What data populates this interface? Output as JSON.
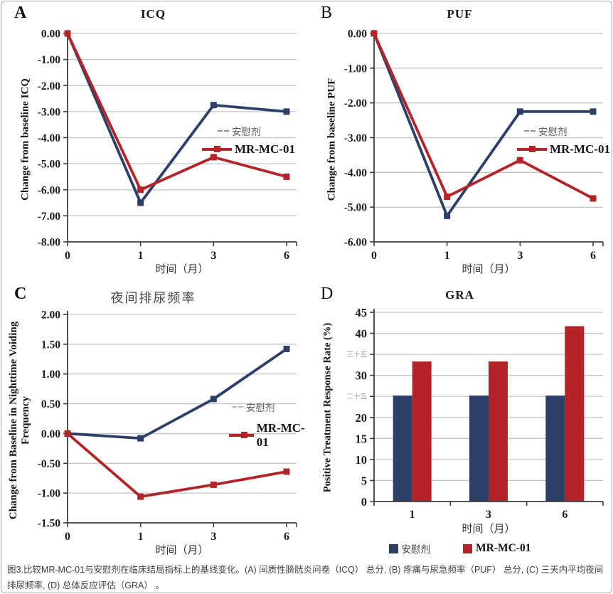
{
  "caption": "图3.比较MR-MC-01与安慰剂在临床结局指标上的基线变化。(A) 间质性膀胱炎问卷（ICQ） 总分, (B) 疼痛与尿急频率（PUF） 总分, (C) 三天内平均夜间排尿频率, (D) 总体反应评估（GRA） 。",
  "colors": {
    "placebo_navy": "#2d3f68",
    "treatment_red": "#b42328",
    "gridline": "#c4c4c4",
    "axis": "#3f3f3f",
    "muted_tick": "#9a9a9a"
  },
  "chart_data": [
    {
      "type": "line",
      "panel": "A",
      "title": "ICQ",
      "ylabel": "Change from baseline ICQ",
      "xlabel": "时间（月）",
      "categories": [
        "0",
        "1",
        "3",
        "6"
      ],
      "ylim": [
        -8,
        0
      ],
      "grid": true,
      "legend_position": "inside-right",
      "yticks": [
        {
          "label": "0.00",
          "value": 0
        },
        {
          "label": "-1.00",
          "value": -1
        },
        {
          "label": "-2.00",
          "value": -2
        },
        {
          "label": "-3.00",
          "value": -3
        },
        {
          "label": "-4.00",
          "value": -4
        },
        {
          "label": "-5.00",
          "value": -5
        },
        {
          "label": "-6.00",
          "value": -6
        },
        {
          "label": "-7.00",
          "value": -7
        },
        {
          "label": "-8.00",
          "value": -8
        }
      ],
      "series": [
        {
          "name": "安慰剂",
          "color": "#2d3f68",
          "values": [
            0,
            -6.5,
            -2.75,
            -3.0
          ]
        },
        {
          "name": "MR-MC-01",
          "color": "#b42328",
          "values": [
            0,
            -6.0,
            -4.75,
            -5.5
          ]
        }
      ]
    },
    {
      "type": "line",
      "panel": "B",
      "title": "PUF",
      "ylabel": "Change from baseline PUF",
      "xlabel": "时间（月）",
      "categories": [
        "0",
        "1",
        "3",
        "6"
      ],
      "ylim": [
        -6,
        0
      ],
      "grid": true,
      "legend_position": "inside-right",
      "yticks": [
        {
          "label": "0.00",
          "value": 0
        },
        {
          "label": "-1.00",
          "value": -1
        },
        {
          "label": "-2.00",
          "value": -2
        },
        {
          "label": "-3.00",
          "value": -3
        },
        {
          "label": "-4.00",
          "value": -4
        },
        {
          "label": "-5.00",
          "value": -5
        },
        {
          "label": "-6.00",
          "value": -6
        }
      ],
      "series": [
        {
          "name": "安慰剂",
          "color": "#2d3f68",
          "values": [
            0,
            -5.25,
            -2.25,
            -2.25
          ]
        },
        {
          "name": "MR-MC-01",
          "color": "#b42328",
          "values": [
            0,
            -4.7,
            -3.65,
            -4.75
          ]
        }
      ]
    },
    {
      "type": "line",
      "panel": "C",
      "title": "夜间排尿频率",
      "ylabel": "Change from Baseline in Nighttime Voiding Frequency",
      "xlabel": "时间（月）",
      "categories": [
        "0",
        "1",
        "3",
        "6"
      ],
      "ylim": [
        -1.5,
        2
      ],
      "grid": true,
      "legend_position": "inside-right",
      "yticks": [
        {
          "label": "2.00",
          "value": 2
        },
        {
          "label": "1.50",
          "value": 1.5
        },
        {
          "label": "1.00",
          "value": 1
        },
        {
          "label": "0.50",
          "value": 0.5
        },
        {
          "label": "0.00",
          "value": 0
        },
        {
          "label": "-0.50",
          "value": -0.5
        },
        {
          "label": "-1.00",
          "value": -1
        },
        {
          "label": "-1.50",
          "value": -1.5
        }
      ],
      "series": [
        {
          "name": "安慰剂",
          "color": "#2d3f68",
          "values": [
            0,
            -0.08,
            0.58,
            1.42
          ]
        },
        {
          "name": "MR-MC-01",
          "color": "#b42328",
          "values": [
            0,
            -1.06,
            -0.86,
            -0.64
          ]
        }
      ]
    },
    {
      "type": "bar",
      "panel": "D",
      "title": "GRA",
      "ylabel": "Positive Treatment Response Rate (%)",
      "xlabel": "时间（月）",
      "categories": [
        "1",
        "3",
        "6"
      ],
      "ylim": [
        0,
        45
      ],
      "grid": true,
      "legend_position": "bottom",
      "yticks": [
        {
          "label": "45",
          "value": 45
        },
        {
          "label": "40",
          "value": 40
        },
        {
          "label": "三十五",
          "value": 35,
          "muted": true
        },
        {
          "label": "30",
          "value": 30
        },
        {
          "label": "二十五",
          "value": 25,
          "muted": true
        },
        {
          "label": "20",
          "value": 20
        },
        {
          "label": "15",
          "value": 15
        },
        {
          "label": "10",
          "value": 10
        },
        {
          "label": "5",
          "value": 5
        },
        {
          "label": "0",
          "value": 0
        }
      ],
      "series": [
        {
          "name": "安慰剂",
          "color": "#2d3f68",
          "values": [
            25.2,
            25.2,
            25.2
          ]
        },
        {
          "name": "MR-MC-01",
          "color": "#b42328",
          "values": [
            33.3,
            33.3,
            41.7
          ]
        }
      ]
    }
  ]
}
